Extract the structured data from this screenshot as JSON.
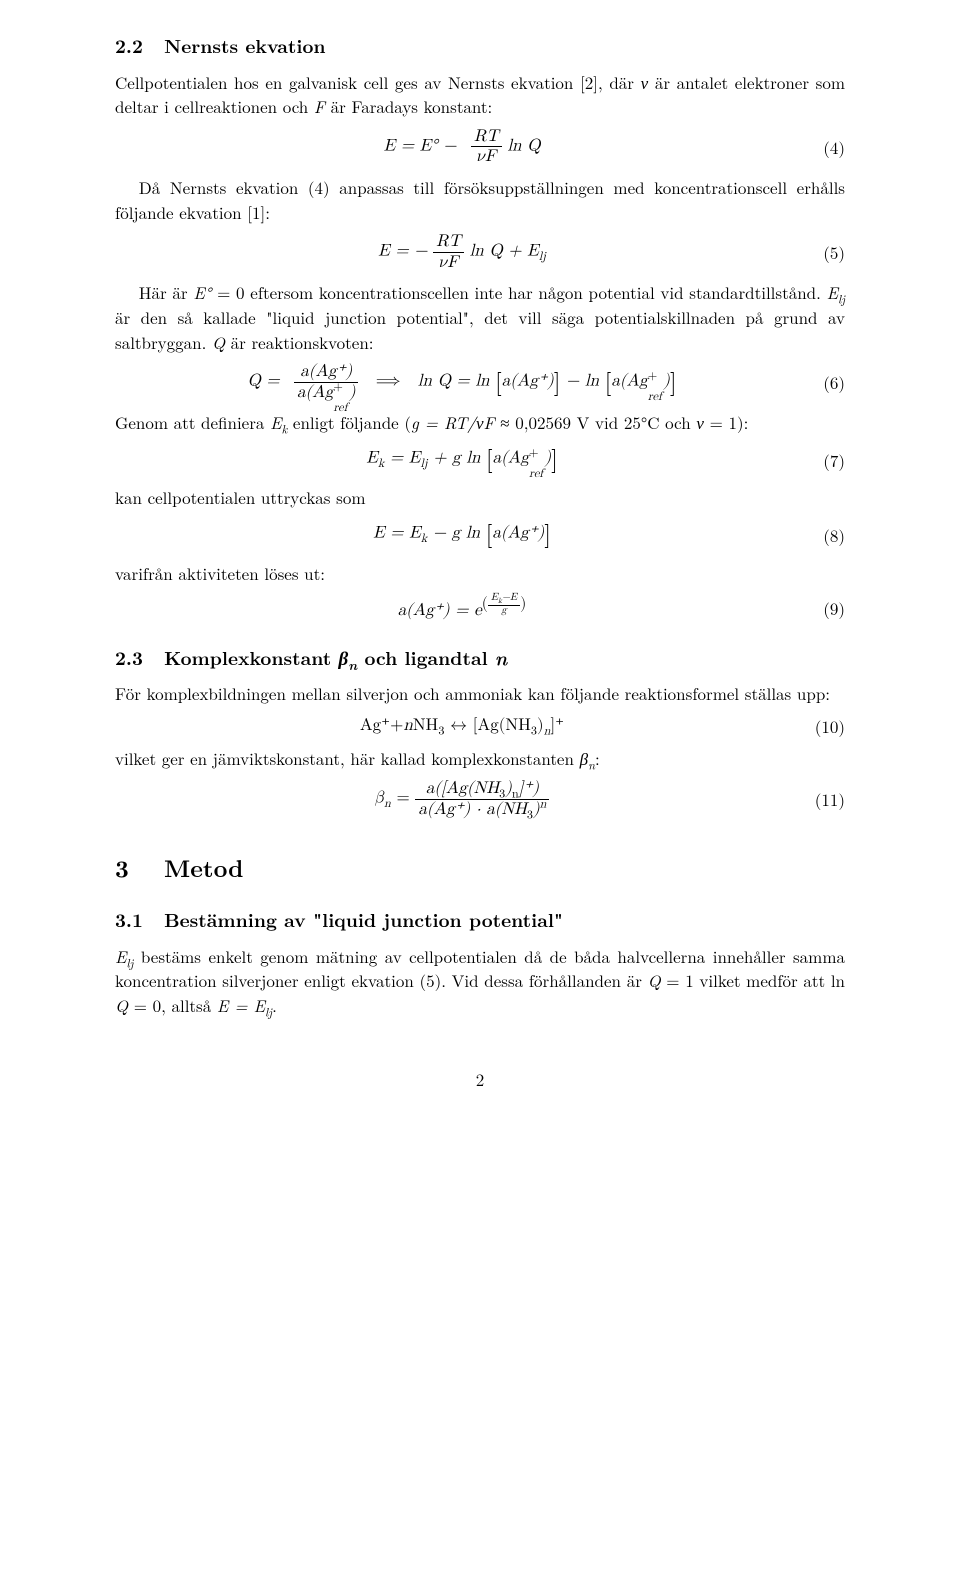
{
  "s22": {
    "num": "2.2",
    "title": "Nernsts ekvation",
    "p1a": "Cellpotentialen hos en galvanisk cell ges av Nernsts ekvation [2], där ",
    "p1b": " är antalet elektroner som deltar i cellreaktionen och ",
    "p1c": " är Faradays konstant:",
    "eq4_lhs": "E = E° −",
    "eq4_num": "RT",
    "eq4_den": "νF",
    "eq4_rhs": " ln Q",
    "eq4_n": "(4)",
    "p2a": "Då Nernsts ekvation (4) anpassas till försöksuppställningen med koncentrationscell erhålls följande ekvation [1]:",
    "eq5_lhs": "E = −",
    "eq5_num": "RT",
    "eq5_den": "νF",
    "eq5_mid": " ln Q + E",
    "eq5_sub": "lj",
    "eq5_n": "(5)",
    "p3a": "Här är ",
    "p3b": " = 0 eftersom koncentrationscellen inte har någon potential vid standardtillstånd. ",
    "p3c": " är den så kallade \"liquid junction potential\", det vill säga potentialskillnaden på grund av saltbryggan. ",
    "p3d": " är reaktionskvoten:",
    "eq6_lhs": "Q =",
    "eq6_fnum": "a(Ag⁺)",
    "eq6_fden_a": "a(Ag",
    "eq6_fden_b": "ref",
    "eq6_fden_c": ")",
    "eq6_arrow": "⟹",
    "eq6_mid": "ln Q = ln ",
    "eq6_br1": "a(Ag⁺)",
    "eq6_minus": " − ln ",
    "eq6_br2a": "a(Ag",
    "eq6_br2b": "ref",
    "eq6_br2c": ")",
    "eq6_n": "(6)",
    "p4a": "Genom att definiera ",
    "p4b": " enligt följande (",
    "p4c": " ≈ 0,02569 V vid 25°C och ",
    "p4d": " = 1):",
    "eq7_lhs": "E",
    "eq7_sub1": "k",
    "eq7_mid1": " = E",
    "eq7_sub2": "lj",
    "eq7_mid2": " + g  ln ",
    "eq7_br_a": "a(Ag",
    "eq7_br_b": "ref",
    "eq7_br_c": ")",
    "eq7_n": "(7)",
    "p5": "kan cellpotentialen uttryckas som",
    "eq8_lhs": "E = E",
    "eq8_sub": "k",
    "eq8_mid": " − g  ln ",
    "eq8_br": "a(Ag⁺)",
    "eq8_n": "(8)",
    "p6": "varifrån aktiviteten löses ut:",
    "eq9_lhs": "a(Ag⁺) = e",
    "eq9_exp_num": "E",
    "eq9_exp_sub": "k",
    "eq9_exp_mid": "−E",
    "eq9_exp_den": "g",
    "eq9_n": "(9)"
  },
  "s23": {
    "num": "2.3",
    "title_a": "Komplexkonstant ",
    "title_b": " och ligandtal ",
    "p1": "För komplexbildningen mellan silverjon och ammoniak kan följande reaktionsformel ställas upp:",
    "eq10_a": "Ag⁺+",
    "eq10_b": "NH",
    "eq10_c": " ↔ [Ag(NH",
    "eq10_d": ")",
    "eq10_e": "]⁺",
    "eq10_n": "(10)",
    "p2a": "vilket ger en jämviktskonstant, här kallad komplexkonstanten ",
    "p2b": ":",
    "eq11_lhs": "β",
    "eq11_sub": "n",
    "eq11_eq": " = ",
    "eq11_num_a": "a([Ag(NH",
    "eq11_num_b": ")",
    "eq11_num_c": "]⁺)",
    "eq11_den_a": "a(Ag⁺) · a(NH",
    "eq11_den_b": ")",
    "eq11_n": "(11)"
  },
  "s3": {
    "num": "3",
    "title": "Metod"
  },
  "s31": {
    "num": "3.1",
    "title": "Bestämning av \"liquid junction potential\"",
    "p1a": "E",
    "p1b": " bestäms enkelt genom mätning av cellpotentialen då de båda halvcellerna innehåller samma koncentration silverjoner enligt ekvation (5). Vid dessa förhållanden är ",
    "p1c": " = 1 vilket medför att ln ",
    "p1d": " = 0, alltså ",
    "p1e": "."
  },
  "pagenum": "2"
}
